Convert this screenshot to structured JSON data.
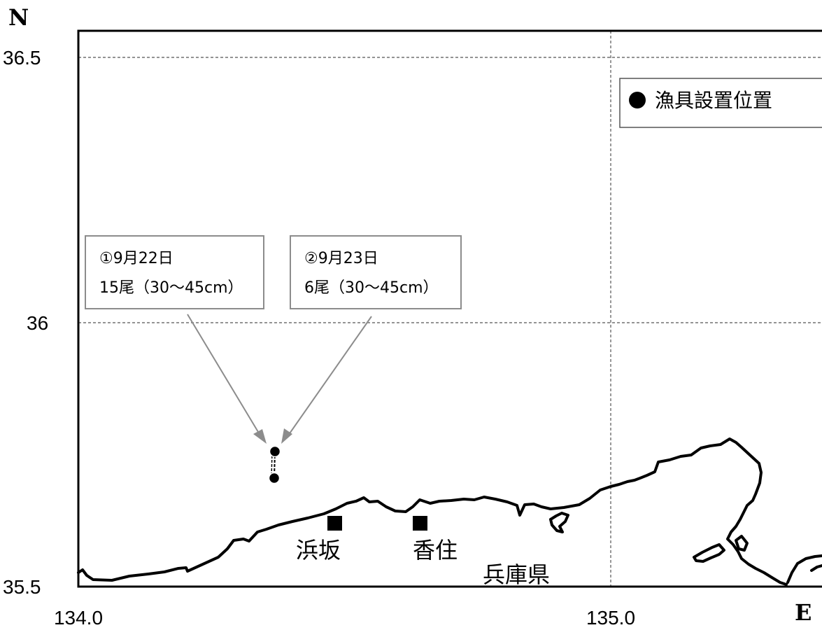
{
  "axes": {
    "north_letter": "N",
    "east_letter": "E",
    "y_ticks": [
      "36.5",
      "36",
      "35.5"
    ],
    "x_ticks": [
      "134.0",
      "135.0"
    ]
  },
  "legend": {
    "icon": "filled-circle",
    "label": "漁具設置位置"
  },
  "callouts": [
    {
      "line1": "①9月22日",
      "line2": "15尾（30～45cm）"
    },
    {
      "line1": "②9月23日",
      "line2": "6尾（30～45cm）"
    }
  ],
  "places": [
    {
      "name": "浜坂",
      "marker": "filled-square"
    },
    {
      "name": "香住",
      "marker": "filled-square"
    }
  ],
  "region_label": "兵庫県",
  "colors": {
    "frame": "#000000",
    "grid": "#555555",
    "callout_border": "#8c8c8c",
    "arrow": "#8c8c8c",
    "coast": "#000000"
  }
}
